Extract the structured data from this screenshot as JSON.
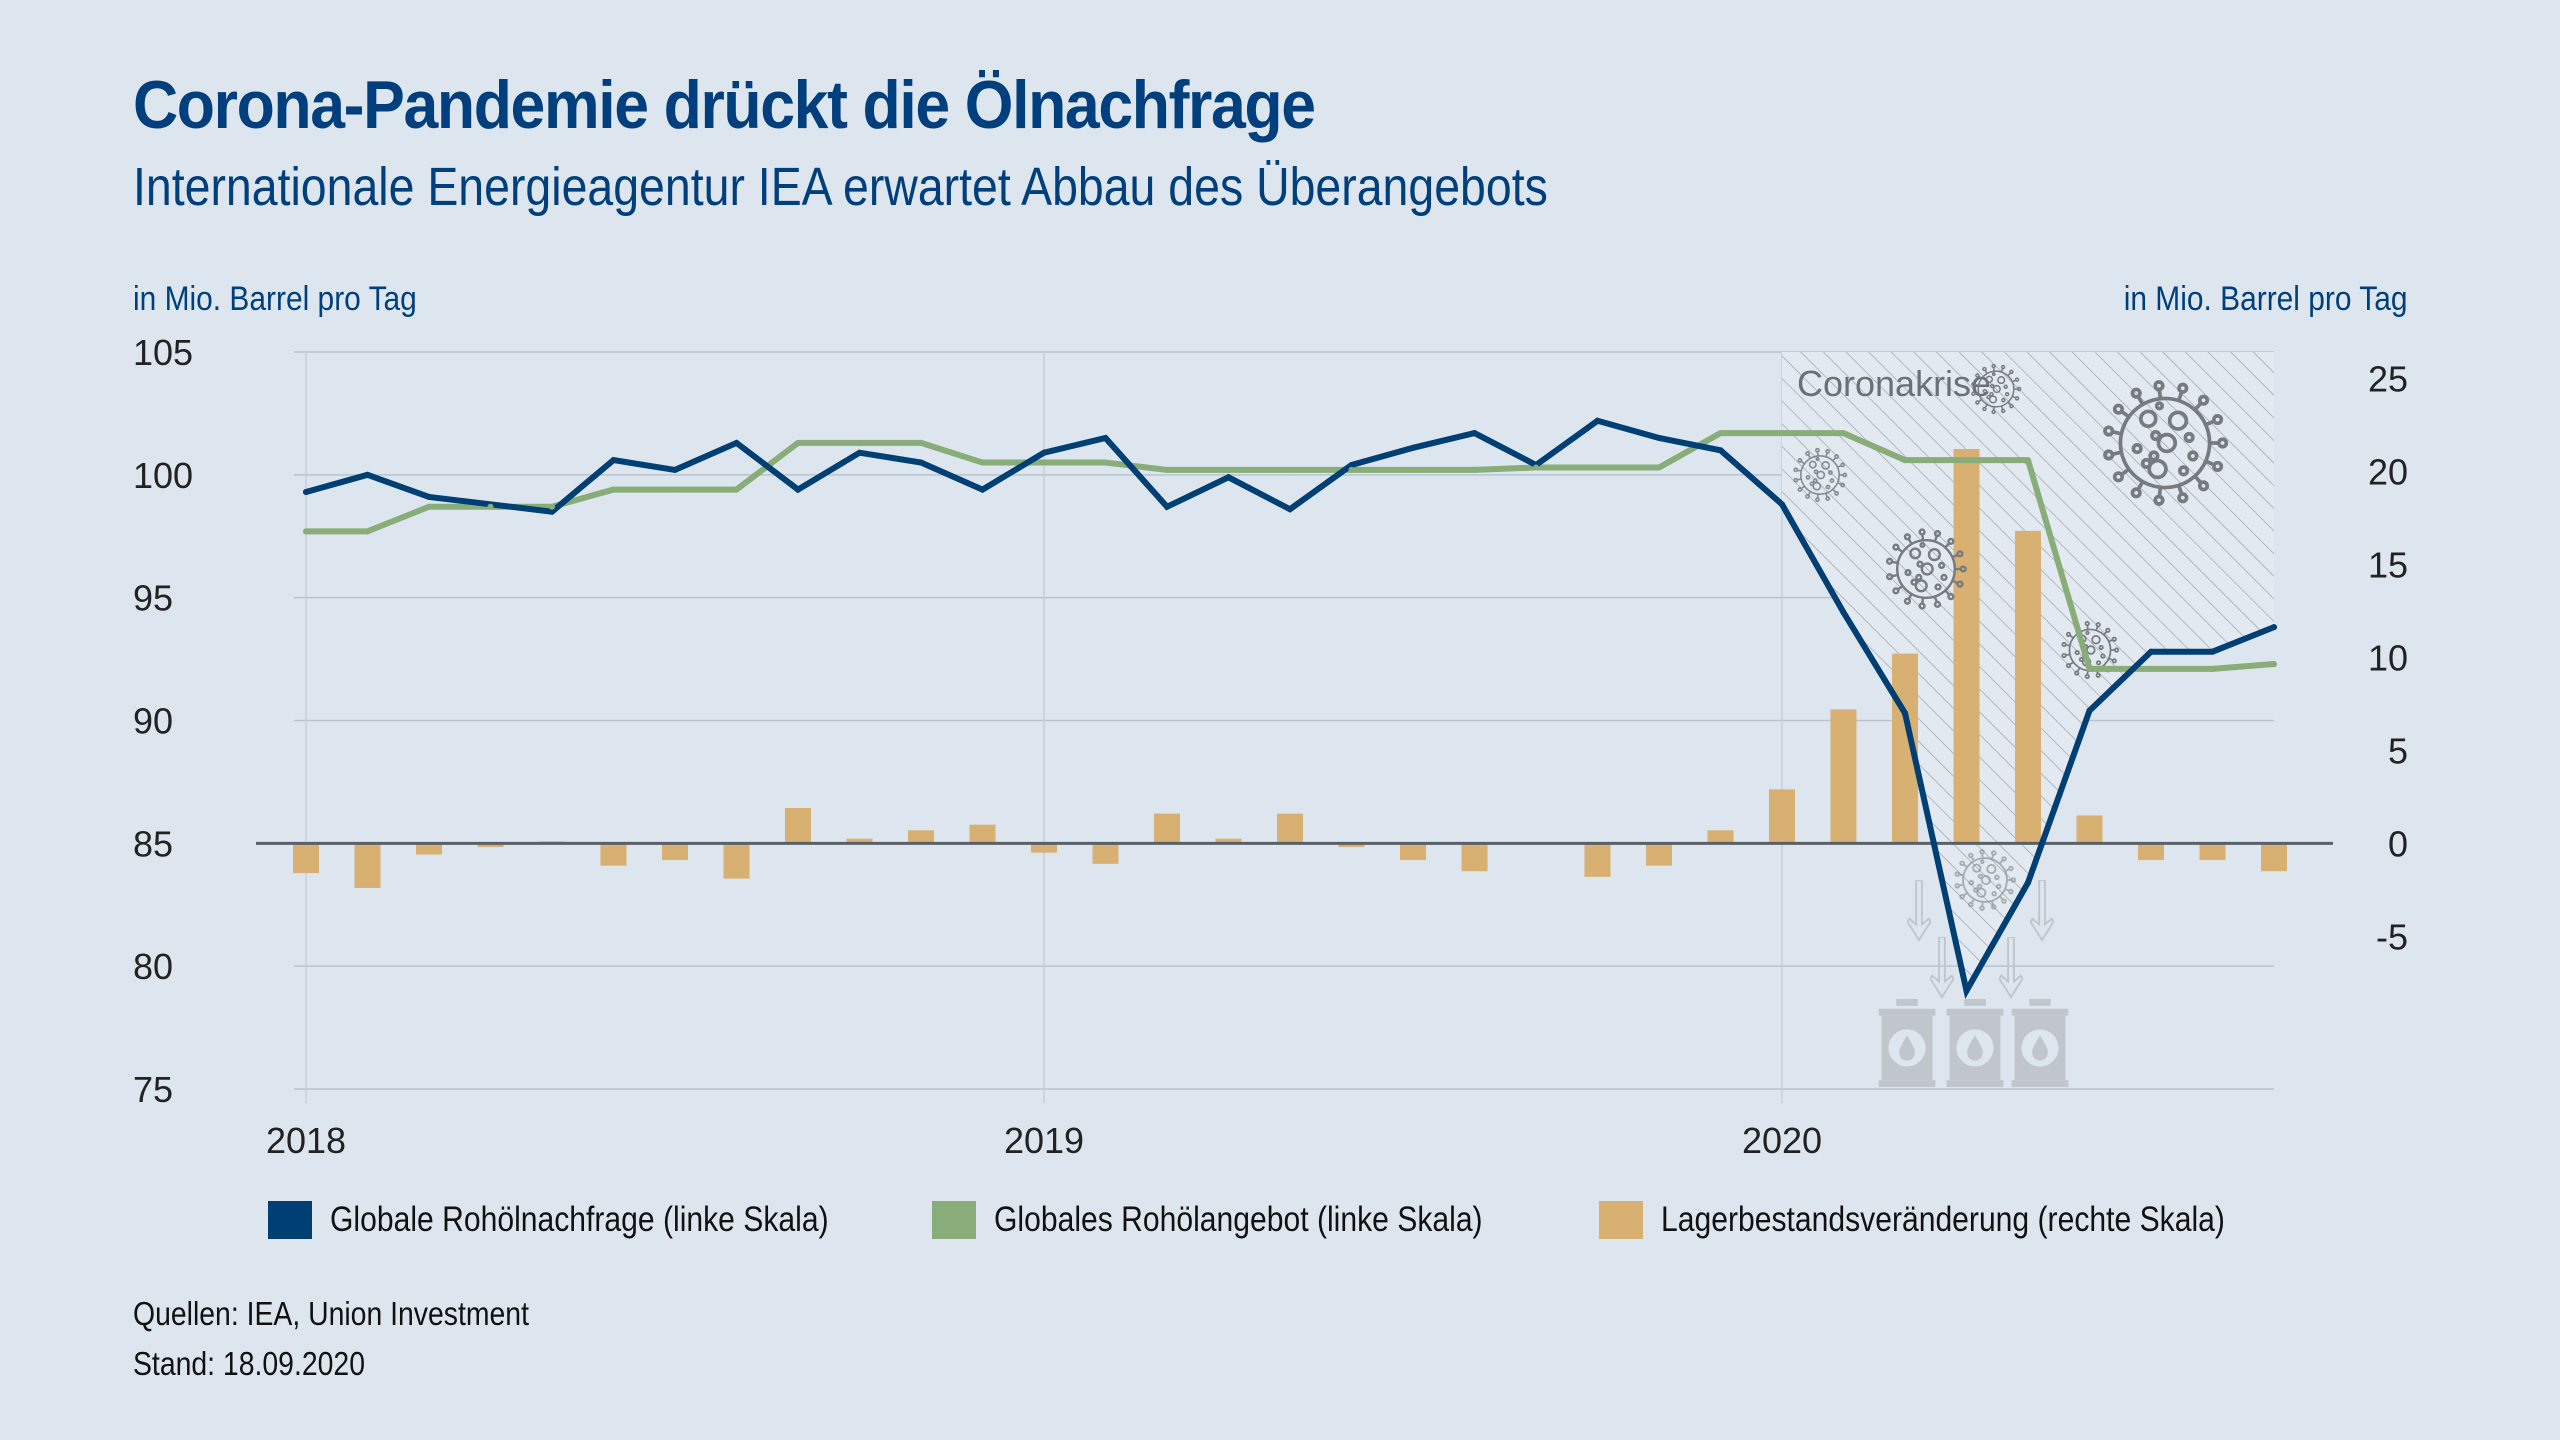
{
  "header": {
    "title": "Corona-Pandemie drückt die Ölnachfrage",
    "subtitle": "Internationale Energieagentur IEA erwartet Abbau des Überangebots"
  },
  "axes": {
    "left_unit": "in Mio. Barrel pro Tag",
    "right_unit": "in Mio. Barrel pro Tag"
  },
  "annotation": {
    "label": "Coronakrise",
    "icons": [
      "virus-icon",
      "oil-barrel-icon",
      "down-arrow-icon"
    ]
  },
  "footer": {
    "source": "Quellen: IEA, Union Investment",
    "stand": "Stand: 18.09.2020"
  },
  "colors": {
    "background": "#dde6ee",
    "demand": "#003f74",
    "supply": "#88ad78",
    "inventory": "#d8b072",
    "title": "#003f7d"
  },
  "chart_data": {
    "type": "line+bar",
    "title": "Corona-Pandemie drückt die Ölnachfrage",
    "subtitle": "Internationale Energieagentur IEA erwartet Abbau des Überangebots",
    "xlabel": "",
    "ylabel_left": "in Mio. Barrel pro Tag",
    "ylabel_right": "in Mio. Barrel pro Tag",
    "ylim_left": [
      75,
      105
    ],
    "yticks_left": [
      105,
      100,
      95,
      90,
      85,
      80,
      75
    ],
    "ylim_right": [
      -8.5,
      26.5
    ],
    "yticks_right": [
      25,
      20,
      15,
      10,
      5,
      0,
      -5
    ],
    "x_tick_labels": [
      "2018",
      "2019",
      "2020"
    ],
    "x_tick_index": [
      0,
      12,
      24
    ],
    "grid": true,
    "legend_position": "bottom",
    "x": [
      "2018-01",
      "2018-02",
      "2018-03",
      "2018-04",
      "2018-05",
      "2018-06",
      "2018-07",
      "2018-08",
      "2018-09",
      "2018-10",
      "2018-11",
      "2018-12",
      "2019-01",
      "2019-02",
      "2019-03",
      "2019-04",
      "2019-05",
      "2019-06",
      "2019-07",
      "2019-08",
      "2019-09",
      "2019-10",
      "2019-11",
      "2019-12",
      "2020-01",
      "2020-02",
      "2020-03",
      "2020-04",
      "2020-05",
      "2020-06",
      "2020-07",
      "2020-08",
      "2020-09"
    ],
    "series": [
      {
        "name": "Globale Rohölnachfrage (linke Skala)",
        "type": "line",
        "axis": "left",
        "values": [
          99.3,
          100.0,
          99.1,
          98.8,
          98.5,
          100.6,
          100.2,
          101.3,
          99.4,
          100.9,
          100.5,
          99.4,
          100.9,
          101.5,
          98.7,
          99.9,
          98.6,
          100.4,
          101.1,
          101.7,
          100.4,
          102.2,
          101.5,
          101.0,
          98.8,
          94.4,
          90.3,
          79.0,
          83.4,
          90.4,
          92.8,
          92.8,
          93.8
        ]
      },
      {
        "name": "Globales Rohölangebot (linke Skala)",
        "type": "line",
        "axis": "left",
        "values": [
          97.7,
          97.7,
          98.7,
          98.7,
          98.7,
          99.4,
          99.4,
          99.4,
          101.3,
          101.3,
          101.3,
          100.5,
          100.5,
          100.5,
          100.2,
          100.2,
          100.2,
          100.2,
          100.2,
          100.2,
          100.3,
          100.3,
          100.3,
          101.7,
          101.7,
          101.7,
          100.6,
          100.6,
          100.6,
          92.1,
          92.1,
          92.1,
          92.3
        ]
      },
      {
        "name": "Lagerbestandsveränderung (rechte Skala)",
        "type": "bar",
        "axis": "right",
        "values": [
          -1.6,
          -2.4,
          -0.6,
          -0.2,
          0.1,
          -1.2,
          -0.9,
          -1.9,
          1.9,
          0.25,
          0.7,
          1.0,
          -0.5,
          -1.1,
          1.6,
          0.25,
          1.6,
          -0.2,
          -0.9,
          -1.5,
          0.0,
          -1.8,
          -1.2,
          0.7,
          2.9,
          7.2,
          10.2,
          21.2,
          16.8,
          1.5,
          -0.9,
          -0.9,
          -1.5
        ]
      }
    ],
    "shaded_region": {
      "label": "Coronakrise",
      "from": "2020-01",
      "to": "2020-09"
    }
  },
  "legend": [
    {
      "label": "Globale Rohölnachfrage (linke Skala)",
      "color": "#003f74"
    },
    {
      "label": "Globales Rohölangebot (linke Skala)",
      "color": "#88ad78"
    },
    {
      "label": "Lagerbestandsveränderung (rechte Skala)",
      "color": "#d8b072"
    }
  ]
}
